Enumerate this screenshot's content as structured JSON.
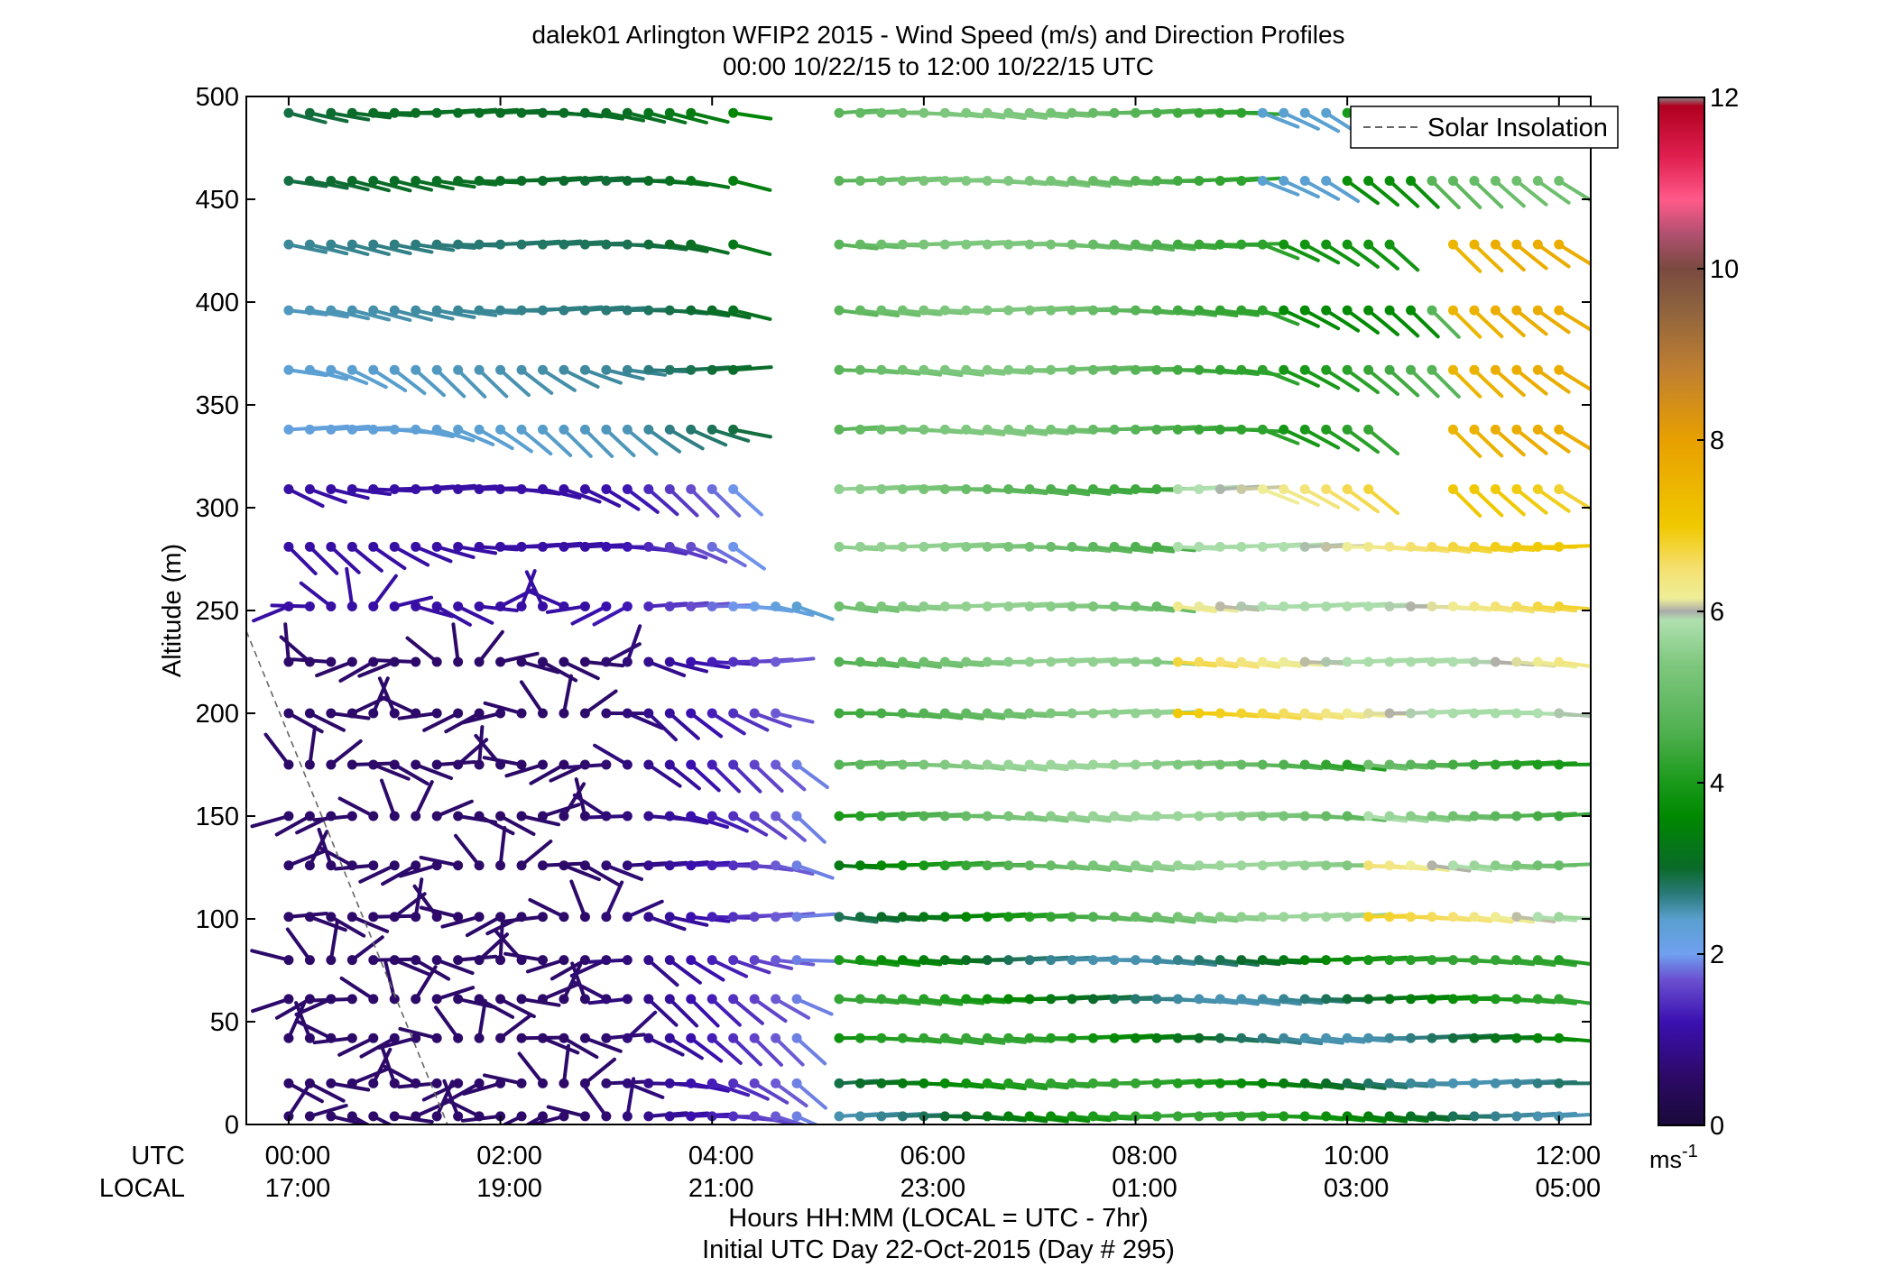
{
  "chart_data": {
    "type": "wind-barb-profile",
    "title": "dalek01 Arlington WFIP2 2015 - Wind Speed (m/s) and Direction Profiles",
    "subtitle": "00:00 10/22/15 to 12:00 10/22/15  UTC",
    "ylabel": "Altitude (m)",
    "ylim": [
      0,
      500
    ],
    "yticks": [
      0,
      50,
      100,
      150,
      200,
      250,
      300,
      350,
      400,
      450,
      500
    ],
    "xlim_hours": [
      -0.4,
      12.3
    ],
    "row_label_utc": "UTC",
    "row_label_local": "LOCAL",
    "xticks_hours": [
      0,
      2,
      4,
      6,
      8,
      10,
      12
    ],
    "xticks_utc": [
      "00:00",
      "02:00",
      "04:00",
      "06:00",
      "08:00",
      "10:00",
      "12:00"
    ],
    "xticks_local": [
      "17:00",
      "19:00",
      "21:00",
      "23:00",
      "01:00",
      "03:00",
      "05:00"
    ],
    "xlabel": "Hours HH:MM  (LOCAL = UTC - 7hr)",
    "xlabel2": "Initial UTC Day 22-Oct-2015 (Day # 295)",
    "legend": {
      "label": "Solar Insolation",
      "style": "dashed",
      "color": "#666666",
      "placement": "top-right"
    },
    "colorbar": {
      "min": 0,
      "max": 12,
      "ticks": [
        0,
        2,
        4,
        6,
        8,
        10,
        12
      ],
      "unit": "ms",
      "unit_exp": "-1",
      "stops": [
        [
          0.0,
          "#888888"
        ],
        [
          0.01,
          "#1a0a3a"
        ],
        [
          0.6,
          "#2d0a6a"
        ],
        [
          1.2,
          "#3a10b0"
        ],
        [
          1.7,
          "#6a50d0"
        ],
        [
          2.0,
          "#70a0f0"
        ],
        [
          2.4,
          "#5aa0d0"
        ],
        [
          2.7,
          "#2a7a7a"
        ],
        [
          3.0,
          "#0a6a2a"
        ],
        [
          3.6,
          "#008800"
        ],
        [
          4.0,
          "#1a9a1a"
        ],
        [
          4.6,
          "#50b050"
        ],
        [
          5.4,
          "#80c880"
        ],
        [
          5.9,
          "#b0e0b0"
        ],
        [
          6.0,
          "#aaaaaa"
        ],
        [
          6.15,
          "#eeee99"
        ],
        [
          6.5,
          "#f5e070"
        ],
        [
          7.0,
          "#f0c800"
        ],
        [
          8.0,
          "#e8a000"
        ],
        [
          8.8,
          "#c08030"
        ],
        [
          9.6,
          "#8a6040"
        ],
        [
          10.0,
          "#7a4a40"
        ],
        [
          10.4,
          "#b05070"
        ],
        [
          10.8,
          "#ff5a8a"
        ],
        [
          11.3,
          "#e02050"
        ],
        [
          11.9,
          "#b00020"
        ],
        [
          12.0,
          "#888888"
        ]
      ]
    },
    "solar_insolation": {
      "x": [
        -0.4,
        1.5
      ],
      "y": [
        240,
        0
      ]
    },
    "barb_levels": [
      4,
      20,
      42,
      61,
      80,
      101,
      126,
      150,
      175,
      200,
      225,
      252,
      281,
      309,
      338,
      367,
      396,
      428,
      459,
      492
    ],
    "time_step_hours": 0.2,
    "profile_segments": [
      {
        "t_start": 0,
        "t_end": 4.8,
        "levels": [
          4,
          20,
          42,
          61,
          80,
          101,
          126,
          150,
          175,
          200,
          225,
          252,
          281,
          309,
          338,
          367,
          396,
          428,
          459,
          492
        ]
      },
      {
        "t_start": 5.2,
        "t_end": 12.1,
        "levels": [
          4,
          20,
          42,
          61,
          80,
          101,
          126,
          150,
          175,
          200,
          225,
          252,
          281,
          309,
          338,
          367,
          396,
          428,
          459,
          492
        ]
      }
    ],
    "representative_samples": [
      {
        "t": 0.2,
        "z": 492,
        "speed": 3.5,
        "dir_deg": 280
      },
      {
        "t": 0.6,
        "z": 367,
        "speed": 1.8,
        "dir_deg": 270
      },
      {
        "t": 1.0,
        "z": 225,
        "speed": 0.8,
        "dir_deg": 160
      },
      {
        "t": 2.0,
        "z": 101,
        "speed": 1.3,
        "dir_deg": 300
      },
      {
        "t": 4.0,
        "z": 20,
        "speed": 0.8,
        "dir_deg": 330
      },
      {
        "t": 6.0,
        "z": 175,
        "speed": 3.8,
        "dir_deg": 275
      },
      {
        "t": 8.0,
        "z": 281,
        "speed": 5.4,
        "dir_deg": 280
      },
      {
        "t": 10.0,
        "z": 396,
        "speed": 3.5,
        "dir_deg": 305
      },
      {
        "t": 11.0,
        "z": 309,
        "speed": 7.0,
        "dir_deg": 290
      },
      {
        "t": 12.0,
        "z": 42,
        "speed": 4.2,
        "dir_deg": 272
      }
    ]
  }
}
